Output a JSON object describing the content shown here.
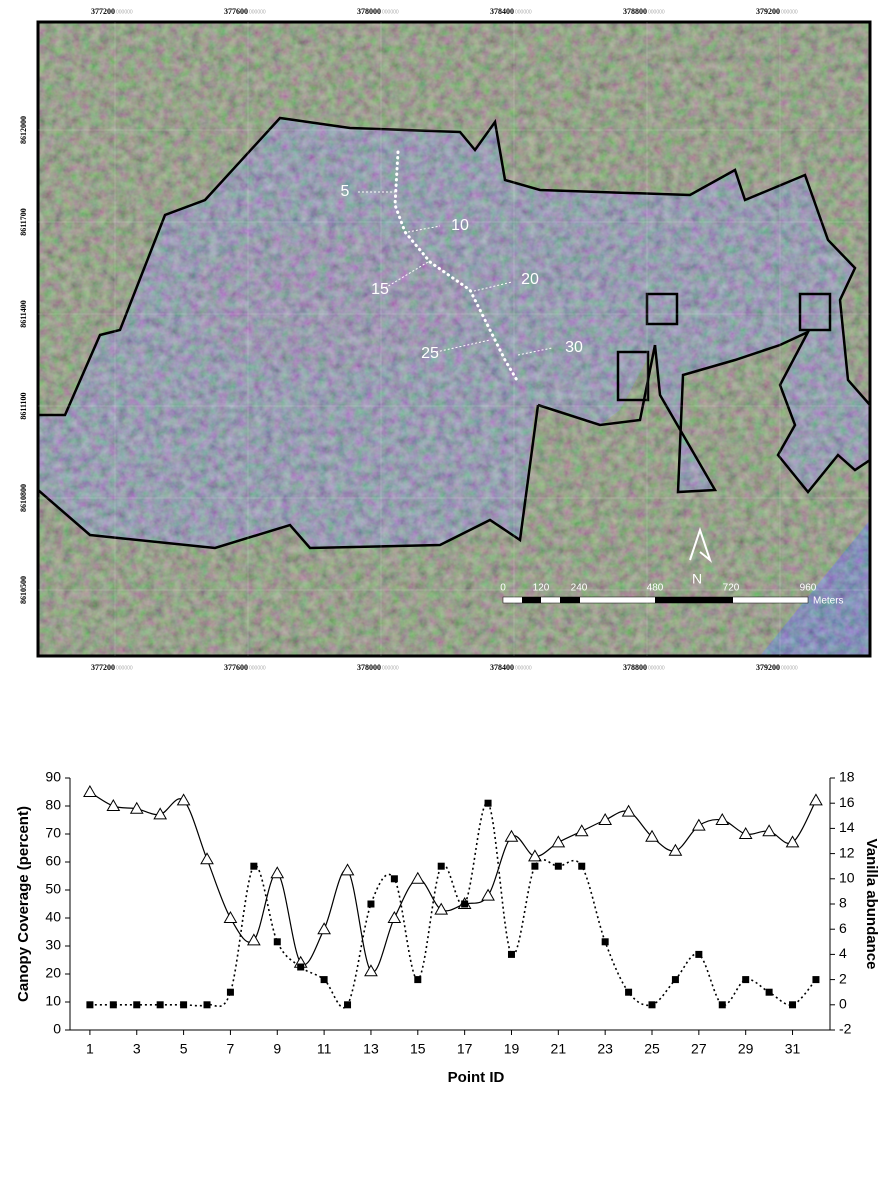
{
  "map": {
    "x_labels": [
      "377200",
      "377600",
      "378000",
      "378400",
      "378800",
      "379200"
    ],
    "y_labels": [
      "8612000",
      "8611700",
      "8611400",
      "8611100",
      "8610800",
      "8610500"
    ],
    "coordinate_suffix": "000000",
    "point_labels": [
      "5",
      "10",
      "15",
      "20",
      "25",
      "30"
    ],
    "scale_labels": [
      "0",
      "120",
      "240",
      "480",
      "720",
      "960"
    ],
    "scale_unit": "Meters",
    "north": "N"
  },
  "chart_data": {
    "type": "line",
    "x": [
      1,
      2,
      3,
      4,
      5,
      6,
      7,
      8,
      9,
      10,
      11,
      12,
      13,
      14,
      15,
      16,
      17,
      18,
      19,
      20,
      21,
      22,
      23,
      24,
      25,
      26,
      27,
      28,
      29,
      30,
      31,
      32
    ],
    "xlim": [
      0.15,
      32.6
    ],
    "xticks": [
      1,
      3,
      5,
      7,
      9,
      11,
      13,
      15,
      17,
      19,
      21,
      23,
      25,
      27,
      29,
      31
    ],
    "x_label": "Point ID",
    "y_label": "Canopy Coverage (percent)",
    "ylim": [
      0,
      90
    ],
    "yticks": [
      0,
      10,
      20,
      30,
      40,
      50,
      60,
      70,
      80,
      90
    ],
    "y2_label": "Vanilla abundance",
    "y2lim": [
      -2,
      18
    ],
    "y2ticks": [
      -2,
      0,
      2,
      4,
      6,
      8,
      10,
      12,
      14,
      16,
      18
    ],
    "series": [
      {
        "color": "#000000",
        "marker": "triangle",
        "line_style": "solid",
        "smooth": true,
        "values": [
          85,
          80,
          79,
          77,
          82,
          61,
          40,
          32,
          56,
          24,
          36,
          57,
          21,
          40,
          54,
          43,
          45,
          48,
          69,
          62,
          67,
          71,
          75,
          78,
          69,
          64,
          73,
          75,
          70,
          71,
          67,
          82
        ]
      },
      {
        "color": "#000000",
        "marker": "square",
        "line_style": "dotted",
        "smooth": true,
        "axis": "y2",
        "values": [
          0,
          0,
          0,
          0,
          0,
          0,
          1,
          11,
          5,
          3,
          2,
          0,
          8,
          10,
          2,
          11,
          8,
          16,
          4,
          11,
          11,
          11,
          5,
          1,
          0,
          2,
          4,
          0,
          2,
          1,
          0,
          2
        ]
      }
    ]
  }
}
